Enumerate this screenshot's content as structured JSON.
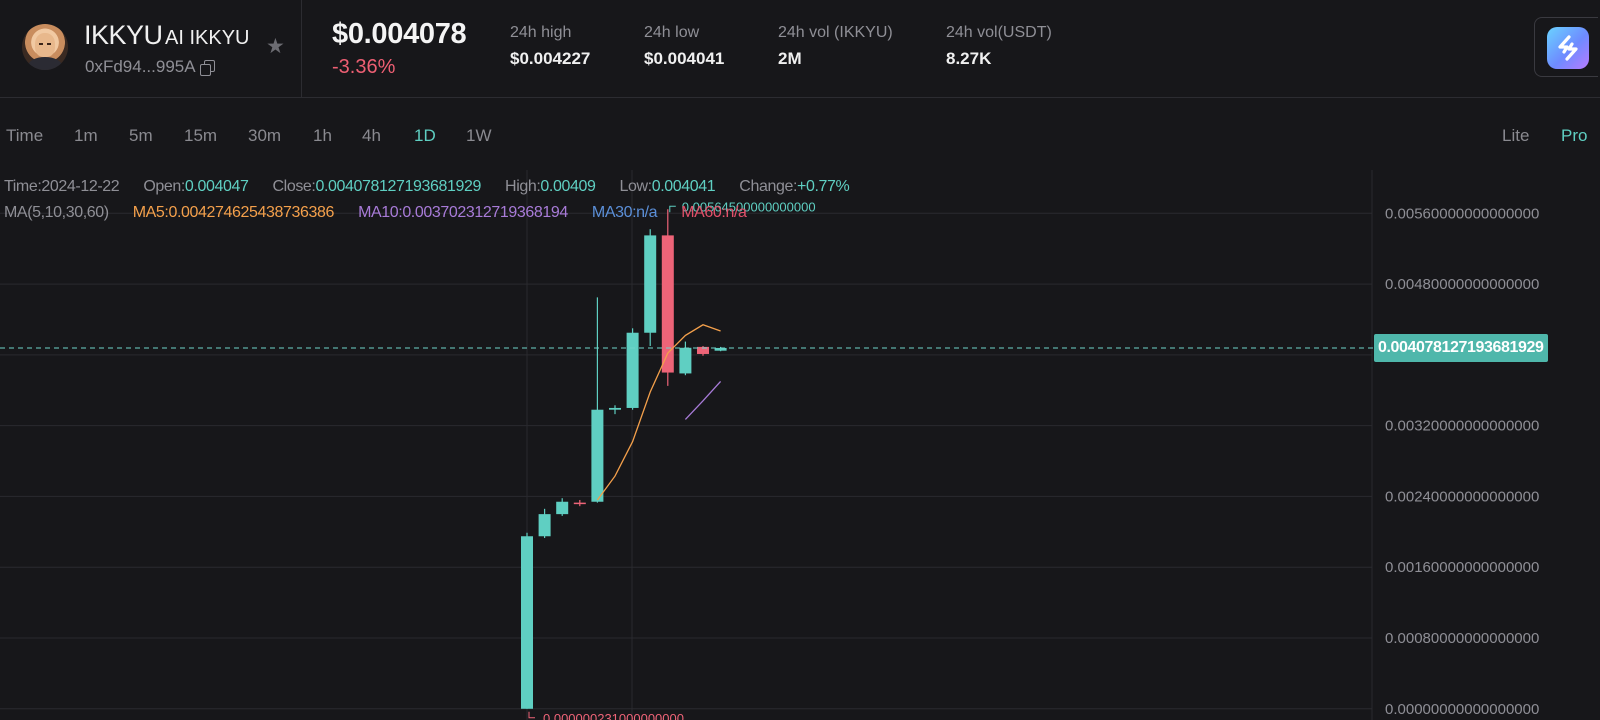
{
  "token": {
    "symbol": "IKKYU",
    "name": "AI IKKYU",
    "address": "0xFd94...995A",
    "icons": {
      "favorite": "star-icon",
      "copy": "copy-icon"
    }
  },
  "market": {
    "price": "$0.004078",
    "change": "-3.36%",
    "stats": [
      {
        "label": "24h high",
        "value": "$0.004227"
      },
      {
        "label": "24h low",
        "value": "$0.004041"
      },
      {
        "label": "24h vol (IKKYU)",
        "value": "2M"
      },
      {
        "label": "24h vol(USDT)",
        "value": "8.27K"
      }
    ]
  },
  "timeframes": {
    "items": [
      "Time",
      "1m",
      "5m",
      "15m",
      "30m",
      "1h",
      "4h",
      "1D",
      "1W"
    ],
    "active": "1D"
  },
  "modes": {
    "items": [
      "Lite",
      "Pro"
    ],
    "active": "Pro"
  },
  "legend": {
    "time_label": "Time:",
    "time_value": "2024-12-22",
    "open_label": "Open:",
    "open_value": "0.004047",
    "close_label": "Close:",
    "close_value": "0.004078127193681929",
    "high_label": "High:",
    "high_value": "0.00409",
    "low_label": "Low:",
    "low_value": "0.004041",
    "change_label": "Change:",
    "change_value": "+0.77%",
    "ma_label": "MA(5,10,30,60)",
    "ma5_label": "MA5:",
    "ma5_value": "0.004274625438736386",
    "ma10_label": "MA10:",
    "ma10_value": "0.003702312719368194",
    "ma30_label": "MA30:",
    "ma30_value": "n/a",
    "ma60_label": "MA60:",
    "ma60_value": "n/a"
  },
  "colors": {
    "up": "#5fcfc2",
    "down": "#ee6478",
    "ma5": "#f4a04b",
    "ma10": "#a87bd8",
    "grid": "#2a2a2f",
    "background": "#17171a"
  },
  "chart_data": {
    "type": "candlestick",
    "y_ticks": [
      "0.00560000000000000",
      "0.00480000000000000",
      "0.00400000000000000",
      "0.00320000000000000",
      "0.00240000000000000",
      "0.00160000000000000",
      "0.00080000000000000",
      "0.00000000000000000"
    ],
    "tick_values": [
      0.0056,
      0.0048,
      0.004,
      0.0032,
      0.0024,
      0.0016,
      0.0008,
      0
    ],
    "ylim": [
      -7e-05,
      0.00575
    ],
    "current_price_label": "0.004078127193681929",
    "current_price": 0.004078,
    "max_annotation": {
      "label": "0.00564500000000000",
      "value": 0.005645,
      "index": 8
    },
    "min_annotation": {
      "label": "0.000000231000000000",
      "value": 2.31e-07,
      "index": 0
    },
    "candles": [
      {
        "o": 3e-07,
        "h": 0.00199,
        "l": 2.31e-07,
        "c": 0.00195
      },
      {
        "o": 0.00195,
        "h": 0.00226,
        "l": 0.00193,
        "c": 0.0022
      },
      {
        "o": 0.0022,
        "h": 0.00238,
        "l": 0.00218,
        "c": 0.00234
      },
      {
        "o": 0.00233,
        "h": 0.00236,
        "l": 0.00229,
        "c": 0.00232
      },
      {
        "o": 0.00234,
        "h": 0.00465,
        "l": 0.00233,
        "c": 0.00338
      },
      {
        "o": 0.00338,
        "h": 0.00343,
        "l": 0.00333,
        "c": 0.0034
      },
      {
        "o": 0.0034,
        "h": 0.0043,
        "l": 0.00338,
        "c": 0.00425
      },
      {
        "o": 0.00425,
        "h": 0.00542,
        "l": 0.0041,
        "c": 0.00535
      },
      {
        "o": 0.00535,
        "h": 0.005645,
        "l": 0.00365,
        "c": 0.0038
      },
      {
        "o": 0.00379,
        "h": 0.00415,
        "l": 0.00377,
        "c": 0.00408
      },
      {
        "o": 0.00409,
        "h": 0.0041,
        "l": 0.00399,
        "c": 0.00401
      },
      {
        "o": 0.004047,
        "h": 0.00409,
        "l": 0.004041,
        "c": 0.004078
      }
    ],
    "ma5": [
      null,
      null,
      null,
      null,
      0.00236,
      0.00263,
      0.00302,
      0.00358,
      0.00402,
      0.00422,
      0.00434,
      0.00427
    ],
    "ma10": [
      null,
      null,
      null,
      null,
      null,
      null,
      null,
      null,
      null,
      0.00327,
      0.00348,
      0.0037
    ]
  }
}
